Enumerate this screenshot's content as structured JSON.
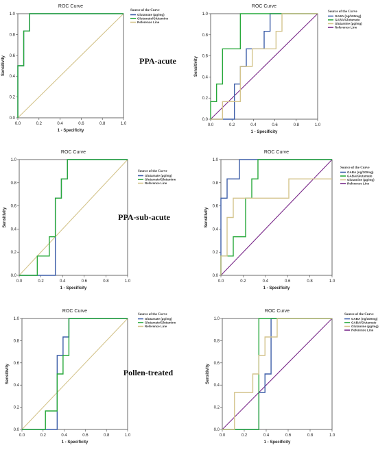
{
  "panel_labels": [
    "PPA-acute",
    "PPA-sub-acute",
    "Pollen-treated"
  ],
  "colors": {
    "blue": "#3d5ea8",
    "green": "#27a83a",
    "tan": "#d4c48c",
    "purple": "#7a2a8a"
  },
  "chart_data": [
    {
      "type": "line",
      "title": "ROC Curve",
      "xlabel": "1 - Specificity",
      "ylabel": "Sensitivity",
      "xlim": [
        0,
        1
      ],
      "ylim": [
        0,
        1
      ],
      "xticks": [
        "0.0",
        "0.2",
        "0.4",
        "0.6",
        "0.8",
        "1.0"
      ],
      "yticks": [
        "0.0",
        "0.2",
        "0.4",
        "0.6",
        "0.8",
        "1.0"
      ],
      "legend_title": "Source of the Curve",
      "legend_position": "top-right",
      "series": [
        {
          "name": "Glutamate (µg/mg)",
          "color": "#3d5ea8",
          "x": [
            0,
            0,
            0.0556,
            0.0556,
            0.1111,
            0.1111,
            1
          ],
          "y": [
            0,
            0.5,
            0.5,
            0.8333,
            0.8333,
            1,
            1
          ]
        },
        {
          "name": "Glutamate/Glutamine",
          "color": "#27a83a",
          "x": [
            0,
            0,
            0.0556,
            0.0556,
            0.1111,
            0.1111,
            1
          ],
          "y": [
            0,
            0.5,
            0.5,
            0.8333,
            0.8333,
            1,
            1
          ]
        },
        {
          "name": "Reference Line",
          "color": "#d4c48c",
          "x": [
            0,
            1
          ],
          "y": [
            0,
            1
          ]
        }
      ]
    },
    {
      "type": "line",
      "title": "ROC Curve",
      "xlabel": "1 - Specificity",
      "ylabel": "Sensitivity",
      "xlim": [
        0,
        1
      ],
      "ylim": [
        0,
        1
      ],
      "xticks": [
        "0.0",
        "0.2",
        "0.4",
        "0.6",
        "0.8",
        "1.0"
      ],
      "yticks": [
        "0.0",
        "0.2",
        "0.4",
        "0.6",
        "0.8",
        "1.0"
      ],
      "legend_title": "Source of the Curve",
      "legend_position": "top-right",
      "series": [
        {
          "name": "GABA (ng/100mg)",
          "color": "#3d5ea8",
          "x": [
            0,
            0.2222,
            0.2222,
            0.2778,
            0.2778,
            0.3333,
            0.3333,
            0.5,
            0.5,
            0.5556,
            0.5556,
            1
          ],
          "y": [
            0,
            0,
            0.3333,
            0.3333,
            0.5,
            0.5,
            0.6667,
            0.6667,
            0.8333,
            0.8333,
            1,
            1
          ]
        },
        {
          "name": "GABA/Glutamate",
          "color": "#27a83a",
          "x": [
            0,
            0,
            0.0556,
            0.0556,
            0.1111,
            0.1111,
            0.2778,
            0.2778,
            1
          ],
          "y": [
            0,
            0.1667,
            0.1667,
            0.3333,
            0.3333,
            0.6667,
            0.6667,
            1,
            1
          ]
        },
        {
          "name": "Glutamine (µg/mg)",
          "color": "#d4c48c",
          "x": [
            0,
            0.1111,
            0.1111,
            0.2778,
            0.2778,
            0.3889,
            0.3889,
            0.6111,
            0.6111,
            0.6667,
            0.6667,
            1
          ],
          "y": [
            0,
            0,
            0.1667,
            0.1667,
            0.5,
            0.5,
            0.6667,
            0.6667,
            0.8333,
            0.8333,
            1,
            1
          ]
        },
        {
          "name": "Reference Line",
          "color": "#7a2a8a",
          "x": [
            0,
            1
          ],
          "y": [
            0,
            1
          ]
        }
      ]
    },
    {
      "type": "line",
      "title": "ROC Curve",
      "xlabel": "1 - Specificity",
      "ylabel": "Sensitivity",
      "xlim": [
        0,
        1
      ],
      "ylim": [
        0,
        1
      ],
      "xticks": [
        "0.0",
        "0.2",
        "0.4",
        "0.6",
        "0.8",
        "1.0"
      ],
      "yticks": [
        "0.0",
        "0.2",
        "0.4",
        "0.6",
        "0.8",
        "1.0"
      ],
      "legend_title": "Source of the Curve",
      "legend_position": "top-right",
      "series": [
        {
          "name": "Glutamate (µg/mg)",
          "color": "#3d5ea8",
          "x": [
            0,
            0.3333,
            0.3333,
            0.3889,
            0.3889,
            0.4444,
            0.4444,
            1
          ],
          "y": [
            0,
            0,
            0.6667,
            0.6667,
            0.8333,
            0.8333,
            1,
            1
          ]
        },
        {
          "name": "Glutamate/Glutamine",
          "color": "#27a83a",
          "x": [
            0,
            0.1667,
            0.1667,
            0.2778,
            0.2778,
            0.3333,
            0.3333,
            0.3889,
            0.3889,
            0.4444,
            0.4444,
            1
          ],
          "y": [
            0,
            0,
            0.1667,
            0.1667,
            0.3333,
            0.3333,
            0.6667,
            0.6667,
            0.8333,
            0.8333,
            1,
            1
          ]
        },
        {
          "name": "Reference Line",
          "color": "#d4c48c",
          "x": [
            0,
            1
          ],
          "y": [
            0,
            1
          ]
        }
      ]
    },
    {
      "type": "line",
      "title": "ROC Curve",
      "xlabel": "1 - Specificity",
      "ylabel": "Sensitivity",
      "xlim": [
        0,
        1
      ],
      "ylim": [
        0,
        1
      ],
      "xticks": [
        "0.0",
        "0.2",
        "0.4",
        "0.6",
        "0.8",
        "1.0"
      ],
      "yticks": [
        "0.0",
        "0.2",
        "0.4",
        "0.6",
        "0.8",
        "1.0"
      ],
      "legend_title": "Source of the Curve",
      "legend_position": "top-right",
      "series": [
        {
          "name": "GABA (ng/100mg)",
          "color": "#3d5ea8",
          "x": [
            0,
            0,
            0.0556,
            0.0556,
            0.1111,
            0.1111,
            0.1667,
            0.1667,
            0.2222,
            0.2222,
            1
          ],
          "y": [
            0,
            0.6667,
            0.6667,
            0.8333,
            0.8333,
            0.8333,
            0.8333,
            1,
            1,
            1,
            1
          ]
        },
        {
          "name": "GABA/Glutamate",
          "color": "#27a83a",
          "x": [
            0,
            0,
            0.1111,
            0.1111,
            0.2222,
            0.2222,
            0.2778,
            0.2778,
            0.3333,
            0.3333,
            1
          ],
          "y": [
            0,
            0.1667,
            0.1667,
            0.3333,
            0.3333,
            0.6667,
            0.6667,
            0.8333,
            0.8333,
            1,
            1
          ]
        },
        {
          "name": "Glutamine (µg/mg)",
          "color": "#d4c48c",
          "x": [
            0,
            0,
            0.0556,
            0.0556,
            0.1111,
            0.1111,
            0.6111,
            0.6111,
            1
          ],
          "y": [
            0,
            0.1667,
            0.1667,
            0.5,
            0.5,
            0.6667,
            0.6667,
            0.8333,
            0.8333
          ]
        },
        {
          "name": "Reference Line",
          "color": "#7a2a8a",
          "x": [
            0,
            1
          ],
          "y": [
            0,
            1
          ]
        }
      ]
    },
    {
      "type": "line",
      "title": "ROC Curve",
      "xlabel": "1 - Specificity",
      "ylabel": "Sensitivity",
      "xlim": [
        0,
        1
      ],
      "ylim": [
        0,
        1
      ],
      "xticks": [
        "0.0",
        "0.2",
        "0.4",
        "0.6",
        "0.8",
        "1.0"
      ],
      "yticks": [
        "0.0",
        "0.2",
        "0.4",
        "0.6",
        "0.8",
        "1.0"
      ],
      "legend_title": "Source of the Curve",
      "legend_position": "top-right",
      "series": [
        {
          "name": "Glutamate (µg/mg)",
          "color": "#3d5ea8",
          "x": [
            0,
            0.3333,
            0.3333,
            0.3889,
            0.3889,
            0.4444,
            0.4444,
            1
          ],
          "y": [
            0,
            0,
            0.6667,
            0.6667,
            0.8333,
            0.8333,
            1,
            1
          ]
        },
        {
          "name": "Glutamate/Glutamine",
          "color": "#27a83a",
          "x": [
            0,
            0.2222,
            0.2222,
            0.3333,
            0.3333,
            0.3889,
            0.3889,
            0.4444,
            0.4444,
            1
          ],
          "y": [
            0,
            0,
            0.1667,
            0.1667,
            0.5,
            0.5,
            0.6667,
            0.6667,
            1,
            1
          ]
        },
        {
          "name": "Reference Line",
          "color": "#d4c48c",
          "x": [
            0,
            1
          ],
          "y": [
            0,
            1
          ]
        }
      ]
    },
    {
      "type": "line",
      "title": "ROC Curve",
      "xlabel": "1 - Specificity",
      "ylabel": "Sensitivity",
      "xlim": [
        0,
        1
      ],
      "ylim": [
        0,
        1
      ],
      "xticks": [
        "0.0",
        "0.2",
        "0.4",
        "0.6",
        "0.8",
        "1.0"
      ],
      "yticks": [
        "0.0",
        "0.2",
        "0.4",
        "0.6",
        "0.8",
        "1.0"
      ],
      "legend_title": "Source of the Curve",
      "legend_position": "top-right",
      "series": [
        {
          "name": "GABA (ng/100mg)",
          "color": "#3d5ea8",
          "x": [
            0,
            0.3333,
            0.3333,
            0.3889,
            0.3889,
            0.4444,
            0.4444,
            1
          ],
          "y": [
            0,
            0,
            0.3333,
            0.3333,
            0.5,
            0.5,
            1,
            1
          ]
        },
        {
          "name": "GABA/Glutamate",
          "color": "#27a83a",
          "x": [
            0,
            0.3333,
            0.3333,
            1
          ],
          "y": [
            0,
            0,
            1,
            1
          ]
        },
        {
          "name": "Glutamine (µg/mg)",
          "color": "#d4c48c",
          "x": [
            0,
            0.1111,
            0.1111,
            0.2778,
            0.2778,
            0.3333,
            0.3333,
            0.3889,
            0.3889,
            0.4444,
            0.4444,
            0.5,
            0.5,
            1
          ],
          "y": [
            0,
            0,
            0.3333,
            0.3333,
            0.5,
            0.5,
            0.6667,
            0.6667,
            0.8333,
            0.8333,
            0.8333,
            0.8333,
            1,
            1
          ]
        },
        {
          "name": "Reference Line",
          "color": "#7a2a8a",
          "x": [
            0,
            1
          ],
          "y": [
            0,
            1
          ]
        }
      ]
    }
  ]
}
